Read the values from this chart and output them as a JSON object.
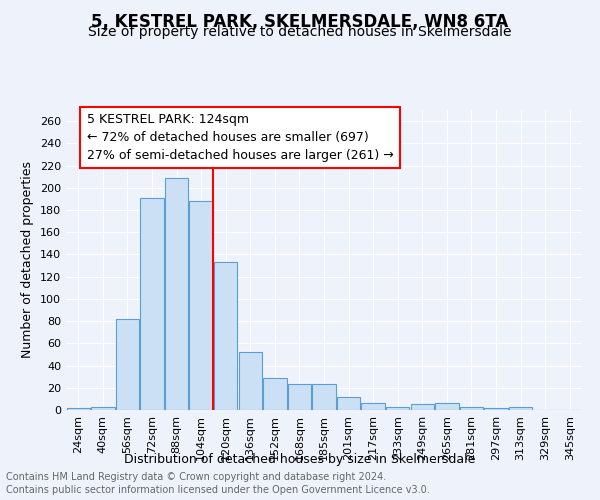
{
  "title": "5, KESTREL PARK, SKELMERSDALE, WN8 6TA",
  "subtitle": "Size of property relative to detached houses in Skelmersdale",
  "xlabel": "Distribution of detached houses by size in Skelmersdale",
  "ylabel": "Number of detached properties",
  "footnote1": "Contains HM Land Registry data © Crown copyright and database right 2024.",
  "footnote2": "Contains public sector information licensed under the Open Government Licence v3.0.",
  "categories": [
    "24sqm",
    "40sqm",
    "56sqm",
    "72sqm",
    "88sqm",
    "104sqm",
    "120sqm",
    "136sqm",
    "152sqm",
    "168sqm",
    "185sqm",
    "201sqm",
    "217sqm",
    "233sqm",
    "249sqm",
    "265sqm",
    "281sqm",
    "297sqm",
    "313sqm",
    "329sqm",
    "345sqm"
  ],
  "values": [
    2,
    3,
    82,
    191,
    209,
    188,
    133,
    52,
    29,
    23,
    23,
    12,
    6,
    3,
    5,
    6,
    3,
    2,
    3,
    0,
    0
  ],
  "bar_color": "#cce0f5",
  "bar_edge_color": "#5a9fd4",
  "red_line_index": 6,
  "annotation_title": "5 KESTREL PARK: 124sqm",
  "annotation_line1": "← 72% of detached houses are smaller (697)",
  "annotation_line2": "27% of semi-detached houses are larger (261) →",
  "ylim": [
    0,
    270
  ],
  "yticks": [
    0,
    20,
    40,
    60,
    80,
    100,
    120,
    140,
    160,
    180,
    200,
    220,
    240,
    260
  ],
  "background_color": "#eef2fa",
  "grid_color": "#ffffff",
  "title_fontsize": 12,
  "subtitle_fontsize": 10,
  "axis_label_fontsize": 9,
  "tick_fontsize": 8,
  "annotation_fontsize": 9,
  "footnote_fontsize": 7
}
